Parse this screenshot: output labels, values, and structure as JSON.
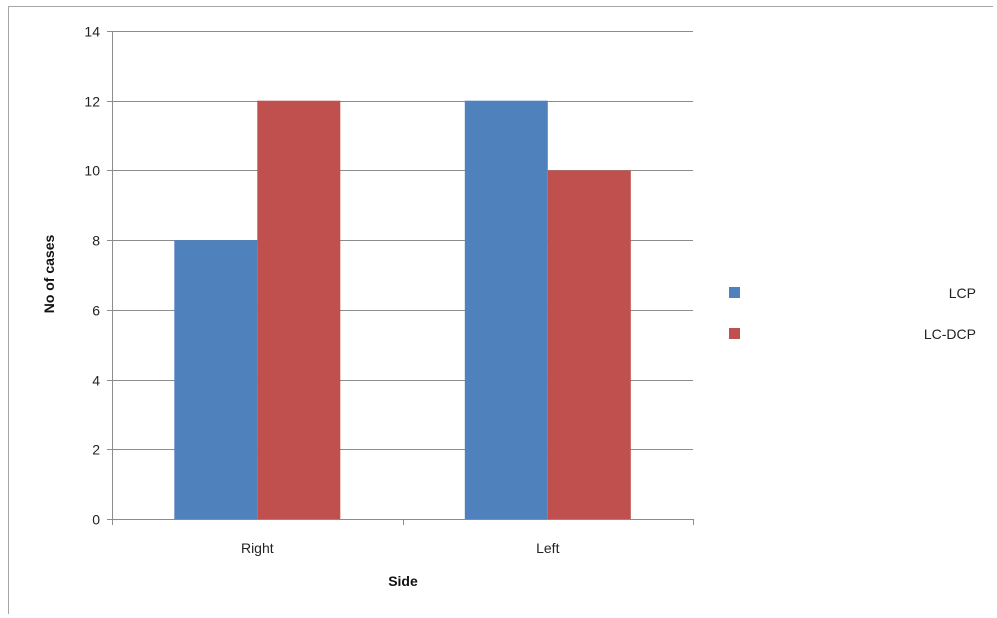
{
  "chart_data": {
    "type": "bar",
    "categories": [
      "Right",
      "Left"
    ],
    "series": [
      {
        "name": "LCP",
        "values": [
          8,
          12
        ],
        "color": "#4f81bd"
      },
      {
        "name": "LC-DCP",
        "values": [
          12,
          10
        ],
        "color": "#c0504d"
      }
    ],
    "xlabel": "Side",
    "ylabel": "No of cases",
    "ylim": [
      0,
      14
    ],
    "yticks": [
      0,
      2,
      4,
      6,
      8,
      10,
      12,
      14
    ],
    "grid": true,
    "legend_position": "right"
  }
}
